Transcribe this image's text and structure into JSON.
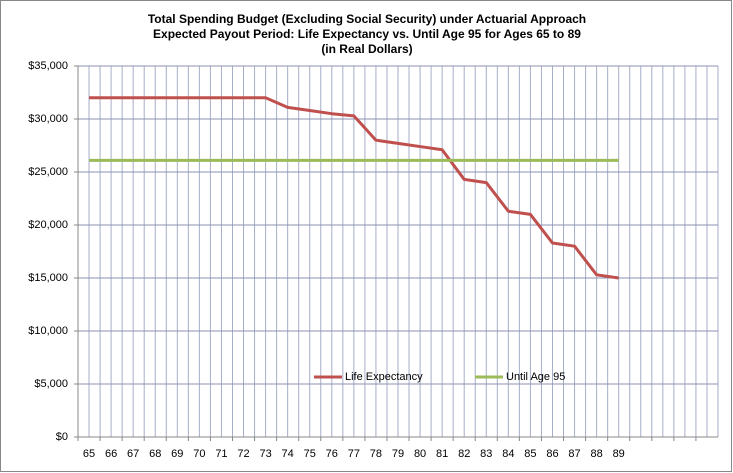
{
  "chart_data": {
    "type": "line",
    "title": [
      "Total Spending Budget (Excluding Social Security) under Actuarial Approach",
      "Expected Payout Period: Life Expectancy  vs. Until Age 95 for Ages 65 to 89",
      "(in Real Dollars)"
    ],
    "categories": [
      "65",
      "66",
      "67",
      "68",
      "69",
      "70",
      "71",
      "72",
      "73",
      "74",
      "75",
      "76",
      "77",
      "78",
      "79",
      "80",
      "81",
      "82",
      "83",
      "84",
      "85",
      "86",
      "87",
      "88",
      "89",
      null,
      null,
      null,
      null
    ],
    "series": [
      {
        "name": "Life Expectancy",
        "color": "#c0504d",
        "values": [
          32000,
          32000,
          32000,
          32000,
          32000,
          32000,
          32000,
          32000,
          32000,
          31100,
          30800,
          30500,
          30300,
          28000,
          27700,
          27400,
          27100,
          24300,
          24000,
          21300,
          21000,
          18300,
          18000,
          15300,
          15000,
          null,
          null,
          null,
          null
        ]
      },
      {
        "name": "Until Age 95",
        "color": "#9bbb59",
        "values": [
          26100,
          26100,
          26100,
          26100,
          26100,
          26100,
          26100,
          26100,
          26100,
          26100,
          26100,
          26100,
          26100,
          26100,
          26100,
          26100,
          26100,
          26100,
          26100,
          26100,
          26100,
          26100,
          26100,
          26100,
          26100,
          null,
          null,
          null,
          null
        ]
      }
    ],
    "ylim": [
      0,
      35000
    ],
    "yticks": [
      {
        "value": 0,
        "label": "$0"
      },
      {
        "value": 5000,
        "label": "$5,000"
      },
      {
        "value": 10000,
        "label": "$10,000"
      },
      {
        "value": 15000,
        "label": "$15,000"
      },
      {
        "value": 20000,
        "label": "$20,000"
      },
      {
        "value": 25000,
        "label": "$25,000"
      },
      {
        "value": 30000,
        "label": "$30,000"
      },
      {
        "value": 35000,
        "label": "$35,000"
      }
    ],
    "grid": true,
    "legend": "bottom"
  }
}
